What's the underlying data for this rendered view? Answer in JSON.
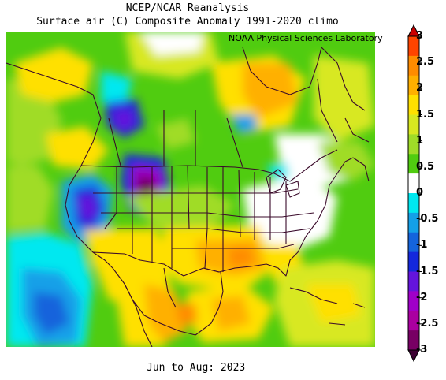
{
  "header": {
    "title": "NCEP/NCAR Reanalysis",
    "subtitle": "Surface air (C) Composite Anomaly 1991-2020 climo",
    "credit": "NOAA Physical Sciences Laboratory"
  },
  "footer": {
    "period": "Jun to Aug: 2023"
  },
  "colorbar": {
    "labels": [
      "3",
      "2.5",
      "2",
      "1.5",
      "1",
      "0.5",
      "0",
      "-0.5",
      "-1",
      "-1.5",
      "-2",
      "-2.5",
      "-3"
    ],
    "colors": [
      "#cc0000",
      "#ff4400",
      "#ff8c00",
      "#ffb000",
      "#ffe000",
      "#d8e820",
      "#a0dc28",
      "#50cc10",
      "#ffffff",
      "#00e8f0",
      "#14a0e8",
      "#1464dc",
      "#1428dc",
      "#6414dc",
      "#a000c8",
      "#aa00a0",
      "#780064",
      "#3c0032"
    ]
  },
  "map": {
    "region": "North America",
    "anomaly_areas": [
      {
        "area": "Eastern Pacific off California",
        "anomaly": "-0.5 to -1"
      },
      {
        "area": "California / Nevada",
        "anomaly": "-1 to -1.5"
      },
      {
        "area": "Wyoming / Colorado",
        "anomaly": "-2.5 to -3"
      },
      {
        "area": "British Columbia",
        "anomaly": "-1.5 to -2"
      },
      {
        "area": "Great Lakes / Northeast US",
        "anomaly": "0"
      },
      {
        "area": "Gulf Coast / Texas",
        "anomaly": "1.5 to 2"
      },
      {
        "area": "Mexico",
        "anomaly": "1 to 2"
      },
      {
        "area": "Hudson Bay region",
        "anomaly": "1.5 to 2"
      },
      {
        "area": "Northern Canada / Alaska",
        "anomaly": "0.5 to 1"
      }
    ]
  }
}
